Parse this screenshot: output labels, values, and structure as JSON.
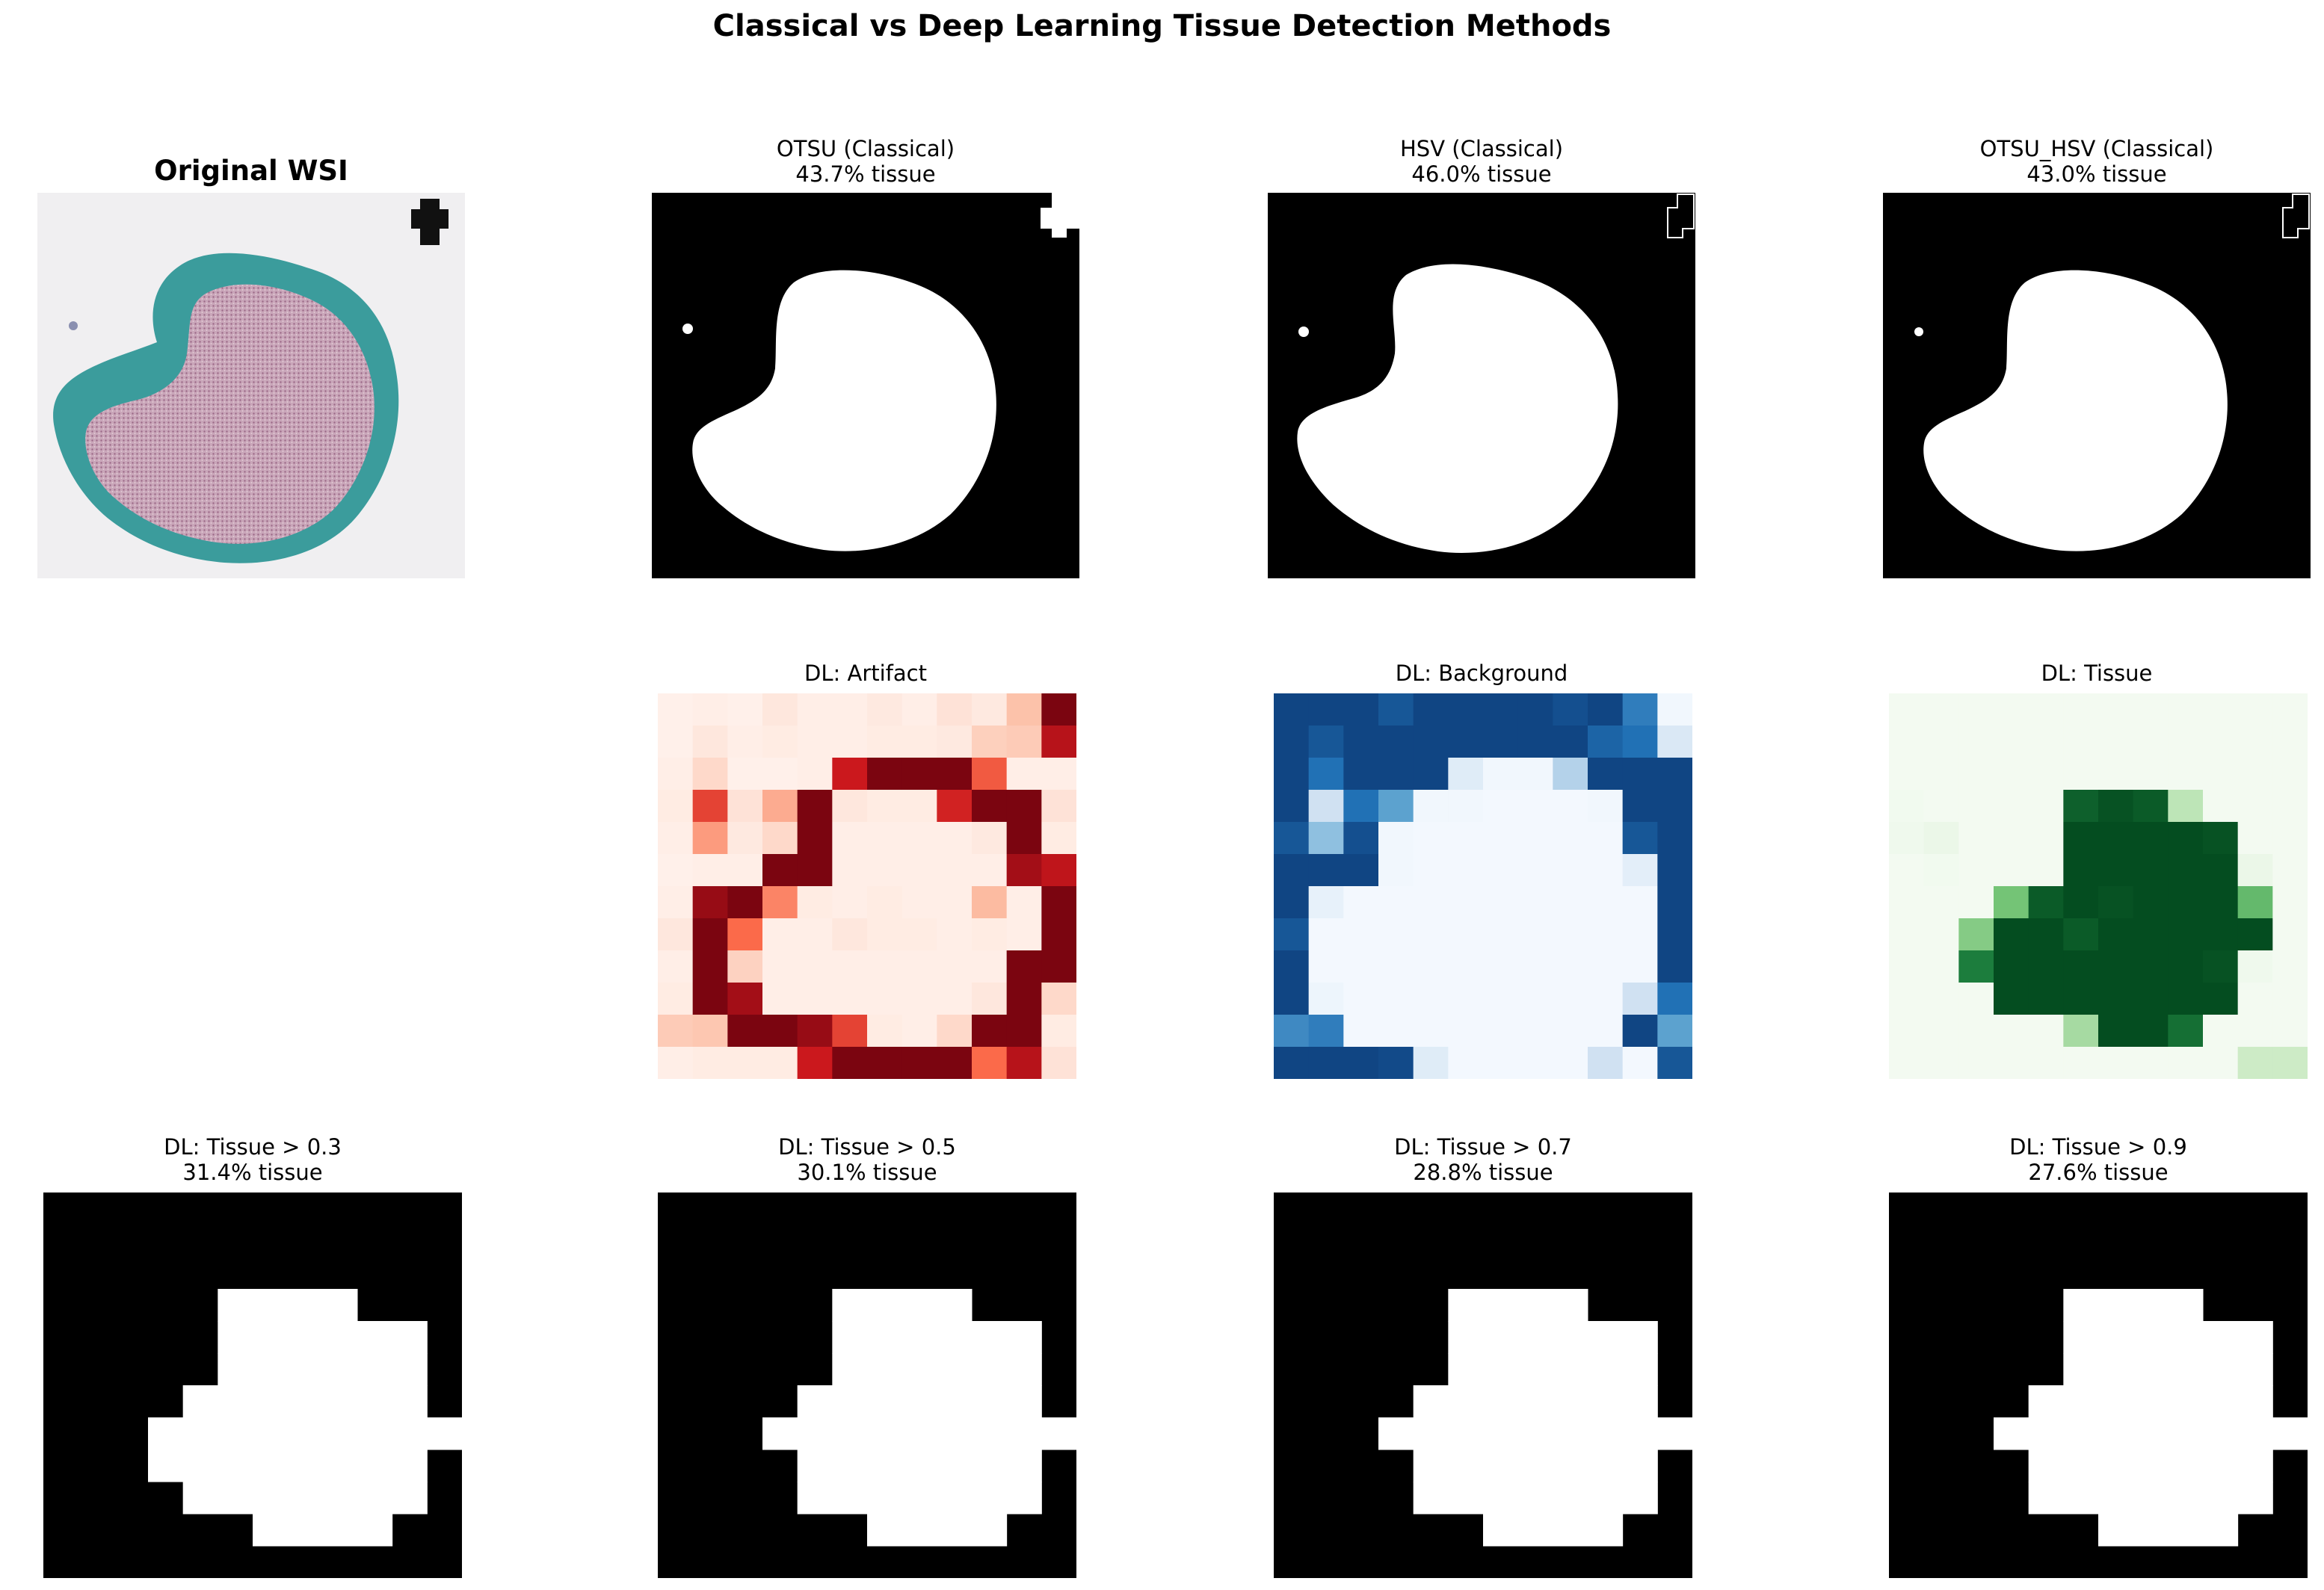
{
  "figure": {
    "title": "Classical vs Deep Learning Tissue Detection Methods"
  },
  "panels": {
    "original": {
      "title": "Original WSI",
      "subtitle": ""
    },
    "otsu": {
      "title": "OTSU (Classical)",
      "subtitle": "43.7% tissue"
    },
    "hsv": {
      "title": "HSV (Classical)",
      "subtitle": "46.0% tissue"
    },
    "otsu_hsv": {
      "title": "OTSU_HSV (Classical)",
      "subtitle": "43.0% tissue"
    },
    "dl_artifact": {
      "title": "DL: Artifact",
      "subtitle": ""
    },
    "dl_background": {
      "title": "DL: Background",
      "subtitle": ""
    },
    "dl_tissue": {
      "title": "DL: Tissue",
      "subtitle": ""
    },
    "dl_t03": {
      "title": "DL: Tissue > 0.3",
      "subtitle": "31.4% tissue"
    },
    "dl_t05": {
      "title": "DL: Tissue > 0.5",
      "subtitle": "30.1% tissue"
    },
    "dl_t07": {
      "title": "DL: Tissue > 0.7",
      "subtitle": "28.8% tissue"
    },
    "dl_t09": {
      "title": "DL: Tissue > 0.9",
      "subtitle": "27.6% tissue"
    }
  },
  "colors": {
    "artifact_cmap": "Reds",
    "background_cmap": "Blues",
    "tissue_cmap": "Greens"
  },
  "heatmaps": {
    "artifact": [
      [
        0.02,
        0.03,
        0.02,
        0.06,
        0.03,
        0.03,
        0.05,
        0.03,
        0.08,
        0.05,
        0.22,
        0.95
      ],
      [
        0.02,
        0.06,
        0.03,
        0.04,
        0.03,
        0.03,
        0.04,
        0.04,
        0.05,
        0.16,
        0.18,
        0.8
      ],
      [
        0.03,
        0.12,
        0.02,
        0.02,
        0.03,
        0.75,
        0.95,
        0.95,
        0.95,
        0.55,
        0.03,
        0.03
      ],
      [
        0.04,
        0.62,
        0.08,
        0.3,
        0.95,
        0.06,
        0.04,
        0.04,
        0.72,
        0.95,
        0.95,
        0.08
      ],
      [
        0.03,
        0.35,
        0.05,
        0.12,
        0.95,
        0.03,
        0.03,
        0.03,
        0.03,
        0.05,
        0.95,
        0.04
      ],
      [
        0.02,
        0.03,
        0.03,
        0.95,
        0.95,
        0.03,
        0.03,
        0.03,
        0.03,
        0.03,
        0.85,
        0.78
      ],
      [
        0.03,
        0.88,
        0.95,
        0.42,
        0.04,
        0.03,
        0.04,
        0.03,
        0.03,
        0.25,
        0.03,
        0.95
      ],
      [
        0.06,
        0.95,
        0.5,
        0.03,
        0.03,
        0.06,
        0.04,
        0.04,
        0.03,
        0.04,
        0.03,
        0.95
      ],
      [
        0.03,
        0.95,
        0.15,
        0.03,
        0.03,
        0.03,
        0.03,
        0.03,
        0.03,
        0.03,
        0.95,
        0.95
      ],
      [
        0.04,
        0.95,
        0.85,
        0.03,
        0.03,
        0.03,
        0.03,
        0.03,
        0.03,
        0.06,
        0.95,
        0.12
      ],
      [
        0.18,
        0.2,
        0.95,
        0.95,
        0.88,
        0.62,
        0.04,
        0.03,
        0.12,
        0.95,
        0.95,
        0.04
      ],
      [
        0.03,
        0.04,
        0.04,
        0.04,
        0.75,
        0.95,
        0.95,
        0.95,
        0.95,
        0.5,
        0.8,
        0.08
      ]
    ],
    "background": [
      [
        0.92,
        0.92,
        0.92,
        0.85,
        0.92,
        0.92,
        0.92,
        0.92,
        0.88,
        0.92,
        0.7,
        0.03
      ],
      [
        0.92,
        0.85,
        0.92,
        0.92,
        0.92,
        0.92,
        0.92,
        0.92,
        0.92,
        0.8,
        0.75,
        0.15
      ],
      [
        0.92,
        0.75,
        0.92,
        0.92,
        0.92,
        0.12,
        0.03,
        0.03,
        0.3,
        0.92,
        0.92,
        0.92
      ],
      [
        0.92,
        0.2,
        0.75,
        0.55,
        0.03,
        0.03,
        0.02,
        0.02,
        0.02,
        0.03,
        0.92,
        0.92
      ],
      [
        0.85,
        0.4,
        0.88,
        0.03,
        0.02,
        0.02,
        0.02,
        0.02,
        0.02,
        0.02,
        0.85,
        0.92
      ],
      [
        0.92,
        0.92,
        0.92,
        0.03,
        0.02,
        0.02,
        0.02,
        0.02,
        0.02,
        0.02,
        0.1,
        0.92
      ],
      [
        0.92,
        0.08,
        0.02,
        0.02,
        0.02,
        0.02,
        0.02,
        0.02,
        0.02,
        0.02,
        0.02,
        0.92
      ],
      [
        0.85,
        0.02,
        0.02,
        0.02,
        0.02,
        0.02,
        0.02,
        0.02,
        0.02,
        0.02,
        0.02,
        0.92
      ],
      [
        0.92,
        0.02,
        0.02,
        0.02,
        0.02,
        0.02,
        0.02,
        0.02,
        0.02,
        0.02,
        0.02,
        0.92
      ],
      [
        0.92,
        0.05,
        0.02,
        0.02,
        0.02,
        0.02,
        0.02,
        0.02,
        0.02,
        0.02,
        0.2,
        0.75
      ],
      [
        0.65,
        0.7,
        0.02,
        0.02,
        0.02,
        0.02,
        0.02,
        0.02,
        0.02,
        0.02,
        0.92,
        0.55
      ],
      [
        0.92,
        0.92,
        0.92,
        0.9,
        0.12,
        0.02,
        0.02,
        0.02,
        0.02,
        0.2,
        0.02,
        0.85
      ]
    ],
    "tissue": [
      [
        0.02,
        0.02,
        0.02,
        0.02,
        0.02,
        0.02,
        0.02,
        0.02,
        0.02,
        0.02,
        0.02,
        0.02
      ],
      [
        0.02,
        0.02,
        0.02,
        0.02,
        0.02,
        0.02,
        0.02,
        0.02,
        0.02,
        0.02,
        0.02,
        0.02
      ],
      [
        0.02,
        0.02,
        0.02,
        0.02,
        0.02,
        0.02,
        0.02,
        0.02,
        0.02,
        0.02,
        0.02,
        0.02
      ],
      [
        0.03,
        0.02,
        0.02,
        0.02,
        0.02,
        0.9,
        0.95,
        0.92,
        0.28,
        0.02,
        0.02,
        0.02
      ],
      [
        0.04,
        0.06,
        0.02,
        0.02,
        0.02,
        0.97,
        0.97,
        0.97,
        0.97,
        0.95,
        0.02,
        0.02
      ],
      [
        0.02,
        0.03,
        0.02,
        0.02,
        0.02,
        0.97,
        0.97,
        0.97,
        0.97,
        0.97,
        0.06,
        0.02
      ],
      [
        0.02,
        0.02,
        0.02,
        0.5,
        0.92,
        0.97,
        0.95,
        0.97,
        0.97,
        0.97,
        0.55,
        0.02
      ],
      [
        0.02,
        0.02,
        0.45,
        0.97,
        0.97,
        0.92,
        0.97,
        0.97,
        0.97,
        0.97,
        0.97,
        0.02
      ],
      [
        0.02,
        0.02,
        0.8,
        0.97,
        0.97,
        0.97,
        0.97,
        0.97,
        0.97,
        0.95,
        0.04,
        0.02
      ],
      [
        0.02,
        0.02,
        0.02,
        0.97,
        0.97,
        0.97,
        0.97,
        0.97,
        0.97,
        0.97,
        0.02,
        0.02
      ],
      [
        0.02,
        0.02,
        0.02,
        0.02,
        0.02,
        0.35,
        0.97,
        0.97,
        0.85,
        0.02,
        0.02,
        0.02
      ],
      [
        0.02,
        0.02,
        0.02,
        0.02,
        0.02,
        0.02,
        0.02,
        0.02,
        0.02,
        0.02,
        0.22,
        0.22
      ]
    ]
  },
  "threshold_masks": {
    "t03": [
      "000000000000",
      "000000000000",
      "000000000000",
      "000001111000",
      "000001111110",
      "000001111110",
      "000011111110",
      "000111111111",
      "000111111110",
      "000011111110",
      "000000111100",
      "000000000000"
    ],
    "t05": [
      "000000000000",
      "000000000000",
      "000000000000",
      "000001111000",
      "000001111110",
      "000001111110",
      "000011111110",
      "000111111111",
      "000011111110",
      "000011111110",
      "000000111100",
      "000000000000"
    ],
    "t07": [
      "000000000000",
      "000000000000",
      "000000000000",
      "000001111000",
      "000001111110",
      "000001111110",
      "000011111110",
      "000111111111",
      "000011111110",
      "000011111110",
      "000000111100",
      "000000000000"
    ],
    "t09": [
      "000000000000",
      "000000000000",
      "000000000000",
      "000001111000",
      "000001111110",
      "000001111110",
      "000011111110",
      "000111111111",
      "000011111110",
      "000011111110",
      "000000111100",
      "000000000000"
    ]
  }
}
